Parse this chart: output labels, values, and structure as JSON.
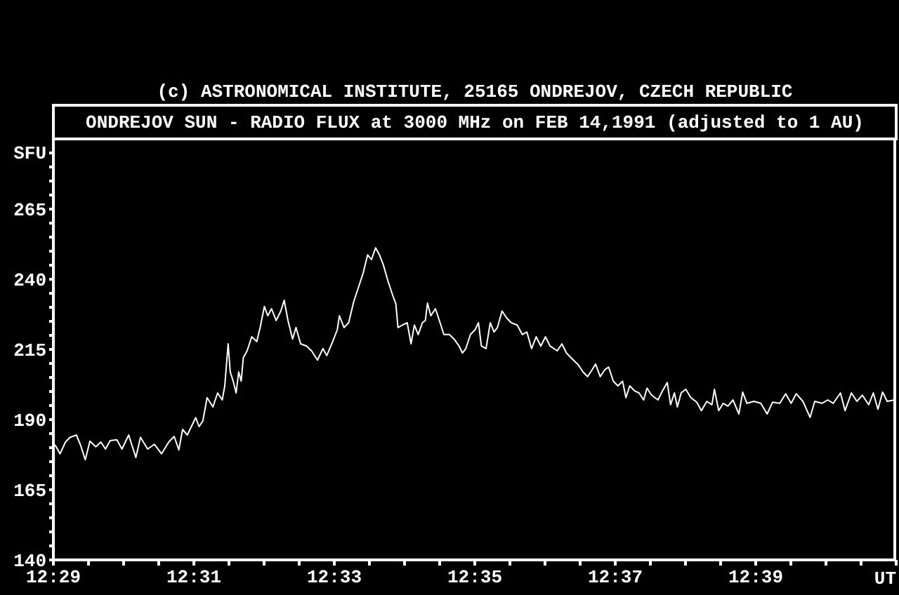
{
  "chart_data": {
    "type": "line",
    "title": "ONDREJOV SUN - RADIO FLUX at 3000 MHz on FEB 14,1991 (adjusted to 1 AU)",
    "annotations": [
      "(c) ASTRONOMICAL INSTITUTE, 25165 ONDREJOV, CZECH REPUBLIC"
    ],
    "xlabel": "UT",
    "ylabel": "SFU",
    "x": [
      12.48333,
      12.4838,
      12.4849,
      12.4862,
      12.4873,
      12.4888,
      12.4898,
      12.4909,
      12.492,
      12.4934,
      12.4946,
      12.4957,
      12.4968,
      12.4984,
      12.4996,
      12.5012,
      12.5029,
      12.504,
      12.5057,
      12.5073,
      12.509,
      12.5107,
      12.512,
      12.5131,
      12.514,
      12.5151,
      12.5171,
      12.5179,
      12.5188,
      12.5198,
      12.5212,
      12.5223,
      12.5234,
      12.524,
      12.5248,
      12.5253,
      12.526,
      12.5267,
      12.5273,
      12.5279,
      12.5284,
      12.5293,
      12.5304,
      12.5316,
      12.5324,
      12.5334,
      12.5342,
      12.5351,
      12.5362,
      12.5373,
      12.5381,
      12.539,
      12.5401,
      12.5409,
      12.542,
      12.5434,
      12.5446,
      12.546,
      12.5473,
      12.5482,
      12.5496,
      12.5507,
      12.5512,
      12.5523,
      12.5534,
      12.5546,
      12.5557,
      12.5568,
      12.5579,
      12.5588,
      12.5598,
      12.5607,
      12.5616,
      12.5627,
      12.5638,
      12.5646,
      12.5651,
      12.5662,
      12.5673,
      12.5682,
      12.569,
      12.5699,
      12.5709,
      12.5716,
      12.5721,
      12.5729,
      12.574,
      12.5751,
      12.576,
      12.5773,
      12.5784,
      12.5796,
      12.5804,
      12.5812,
      12.5823,
      12.5834,
      12.5842,
      12.5849,
      12.586,
      12.587,
      12.5879,
      12.5887,
      12.5898,
      12.5909,
      12.592,
      12.5934,
      12.5946,
      12.5957,
      12.5968,
      12.5979,
      12.599,
      12.6001,
      12.6012,
      12.6029,
      12.604,
      12.6051,
      12.6062,
      12.6079,
      12.609,
      12.6101,
      12.6112,
      12.612,
      12.6131,
      12.6142,
      12.6151,
      12.6162,
      12.6173,
      12.6184,
      12.6192,
      12.6201,
      12.6212,
      12.6223,
      12.6234,
      12.6242,
      12.6253,
      12.6268,
      12.6279,
      12.629,
      12.6298,
      12.6307,
      12.6314,
      12.6323,
      12.6334,
      12.6346,
      12.636,
      12.6371,
      12.6384,
      12.6396,
      12.6402,
      12.6412,
      12.6423,
      12.6434,
      12.6446,
      12.646,
      12.6469,
      12.6479,
      12.6496,
      12.6512,
      12.6527,
      12.654,
      12.6557,
      12.6571,
      12.6584,
      12.6596,
      12.6612,
      12.6629,
      12.664,
      12.6657,
      12.6671,
      12.6684,
      12.6701,
      12.6712,
      12.6727,
      12.674,
      12.6753,
      12.6768,
      12.6779,
      12.679,
      12.6801,
      12.6812,
      12.6829
    ],
    "series": [
      {
        "color": "#ffffff",
        "values": [
          181.2,
          180.8,
          177.8,
          182,
          183.7,
          184.5,
          180.8,
          175.7,
          182.3,
          180.3,
          182,
          179.5,
          182.5,
          182.8,
          179.5,
          184.5,
          176.5,
          183.7,
          179.5,
          181.2,
          177.8,
          182,
          184,
          179.2,
          186.5,
          184.5,
          190.7,
          187.5,
          189.5,
          197.8,
          194.5,
          199.5,
          197,
          202,
          217,
          207,
          203.7,
          199.5,
          207,
          203.7,
          212,
          214.5,
          219.5,
          217.8,
          222.8,
          230.3,
          227,
          229.5,
          225.3,
          228.7,
          232.5,
          225.3,
          218.7,
          222.8,
          217,
          216.2,
          214.5,
          211.2,
          215.3,
          212.8,
          217.8,
          222,
          227,
          222.8,
          224.5,
          232,
          237,
          242,
          248.7,
          247,
          251.2,
          248.7,
          245.3,
          239.5,
          234.5,
          231.2,
          222.8,
          223.7,
          224.5,
          217,
          223.7,
          220.3,
          224.5,
          225.3,
          231.5,
          227,
          229.5,
          224.5,
          220.3,
          220.3,
          218.7,
          216.2,
          213.7,
          215.3,
          220.3,
          222,
          224.5,
          216.2,
          215.3,
          224.5,
          221.2,
          222.8,
          228.7,
          226.2,
          224.5,
          223.7,
          220.3,
          221.2,
          215.3,
          219.5,
          216.2,
          219.5,
          216.2,
          214.5,
          217,
          213.7,
          212,
          209.5,
          207,
          205.3,
          207.8,
          209.8,
          205.3,
          207.8,
          208.7,
          203.7,
          202,
          203.7,
          197.8,
          202,
          200.3,
          199.5,
          197,
          201.2,
          198.7,
          197,
          200.3,
          203.2,
          195.3,
          199.5,
          194.5,
          199.5,
          200.8,
          197.8,
          196.2,
          193.2,
          196.5,
          195.3,
          200.8,
          193.2,
          195.8,
          194.8,
          197,
          192,
          199.8,
          195.8,
          196.5,
          195.8,
          192,
          196.2,
          195.8,
          199.2,
          195.8,
          199.2,
          196.5,
          190.8,
          196.5,
          195.8,
          197,
          195.8,
          199.5,
          193.2,
          199.5,
          196.5,
          198.7,
          195.3,
          199.5,
          193.7,
          199.8,
          196.5,
          197
        ]
      }
    ],
    "xlim": [
      12.48333,
      12.68333
    ],
    "xticks": [
      {
        "value": 12.48333,
        "label": "12:29"
      },
      {
        "value": 12.49167,
        "label": null
      },
      {
        "value": 12.5,
        "label": null
      },
      {
        "value": 12.50833,
        "label": null
      },
      {
        "value": 12.51667,
        "label": "12:31"
      },
      {
        "value": 12.525,
        "label": null
      },
      {
        "value": 12.53333,
        "label": null
      },
      {
        "value": 12.54167,
        "label": null
      },
      {
        "value": 12.55,
        "label": "12:33"
      },
      {
        "value": 12.55833,
        "label": null
      },
      {
        "value": 12.56667,
        "label": null
      },
      {
        "value": 12.575,
        "label": null
      },
      {
        "value": 12.58333,
        "label": "12:35"
      },
      {
        "value": 12.59167,
        "label": null
      },
      {
        "value": 12.6,
        "label": null
      },
      {
        "value": 12.60833,
        "label": null
      },
      {
        "value": 12.61667,
        "label": "12:37"
      },
      {
        "value": 12.625,
        "label": null
      },
      {
        "value": 12.63333,
        "label": null
      },
      {
        "value": 12.64167,
        "label": null
      },
      {
        "value": 12.65,
        "label": "12:39"
      },
      {
        "value": 12.65833,
        "label": null
      },
      {
        "value": 12.66667,
        "label": null
      },
      {
        "value": 12.675,
        "label": null
      },
      {
        "value": 12.68333,
        "label": null
      }
    ],
    "ylim": [
      140,
      290
    ],
    "yticks": [
      140,
      {
        "value": 145,
        "label": null
      },
      {
        "value": 150,
        "label": null
      },
      {
        "value": 155,
        "label": null
      },
      {
        "value": 160,
        "label": null
      },
      165,
      {
        "value": 170,
        "label": null
      },
      {
        "value": 175,
        "label": null
      },
      {
        "value": 180,
        "label": null
      },
      {
        "value": 185,
        "label": null
      },
      190,
      {
        "value": 195,
        "label": null
      },
      {
        "value": 200,
        "label": null
      },
      {
        "value": 205,
        "label": null
      },
      {
        "value": 210,
        "label": null
      },
      215,
      {
        "value": 220,
        "label": null
      },
      {
        "value": 225,
        "label": null
      },
      {
        "value": 230,
        "label": null
      },
      {
        "value": 235,
        "label": null
      },
      240,
      {
        "value": 245,
        "label": null
      },
      {
        "value": 250,
        "label": null
      },
      {
        "value": 255,
        "label": null
      },
      {
        "value": 260,
        "label": null
      },
      265,
      {
        "value": 270,
        "label": null
      },
      {
        "value": 275,
        "label": null
      },
      {
        "value": 280,
        "label": null
      },
      {
        "value": 285,
        "label": null
      }
    ]
  }
}
